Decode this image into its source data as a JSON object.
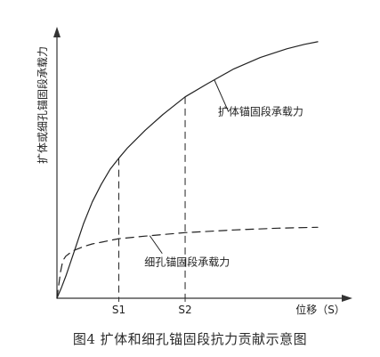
{
  "chart_data": {
    "type": "line",
    "title": "",
    "xlabel": "位移（S）",
    "ylabel": "扩体或细孔锚固段承载力",
    "xlim": [
      0,
      300
    ],
    "ylim": [
      0,
      300
    ],
    "x_ticks": [
      {
        "label": "S1",
        "x": 70
      },
      {
        "label": "S2",
        "x": 145
      }
    ],
    "series": [
      {
        "name": "扩体锚固段承载力",
        "style": "solid",
        "x": [
          0,
          2,
          5,
          10,
          20,
          30,
          40,
          50,
          60,
          70,
          80,
          100,
          120,
          145,
          170,
          200,
          230,
          260,
          280,
          295
        ],
        "y": [
          0,
          5,
          12,
          25,
          55,
          85,
          110,
          130,
          147,
          160,
          172,
          192,
          210,
          230,
          245,
          262,
          275,
          285,
          290,
          293
        ]
      },
      {
        "name": "细孔锚固段承载力",
        "style": "dashed",
        "x": [
          0,
          2,
          4,
          6,
          8,
          10,
          15,
          20,
          30,
          40,
          50,
          60,
          70,
          100,
          145,
          200,
          250,
          295
        ],
        "y": [
          0,
          15,
          30,
          40,
          45,
          48,
          52,
          55,
          59,
          62,
          64,
          66,
          68,
          71,
          75,
          78,
          80,
          81
        ]
      }
    ],
    "annotations": [
      {
        "text": "扩体锚固段承载力",
        "target_series": 0
      },
      {
        "text": "细孔锚固段承载力",
        "target_series": 1
      }
    ],
    "grid": false,
    "legend": "none"
  },
  "figure": {
    "caption": "图4 扩体和细孔锚固段抗力贡献示意图"
  }
}
